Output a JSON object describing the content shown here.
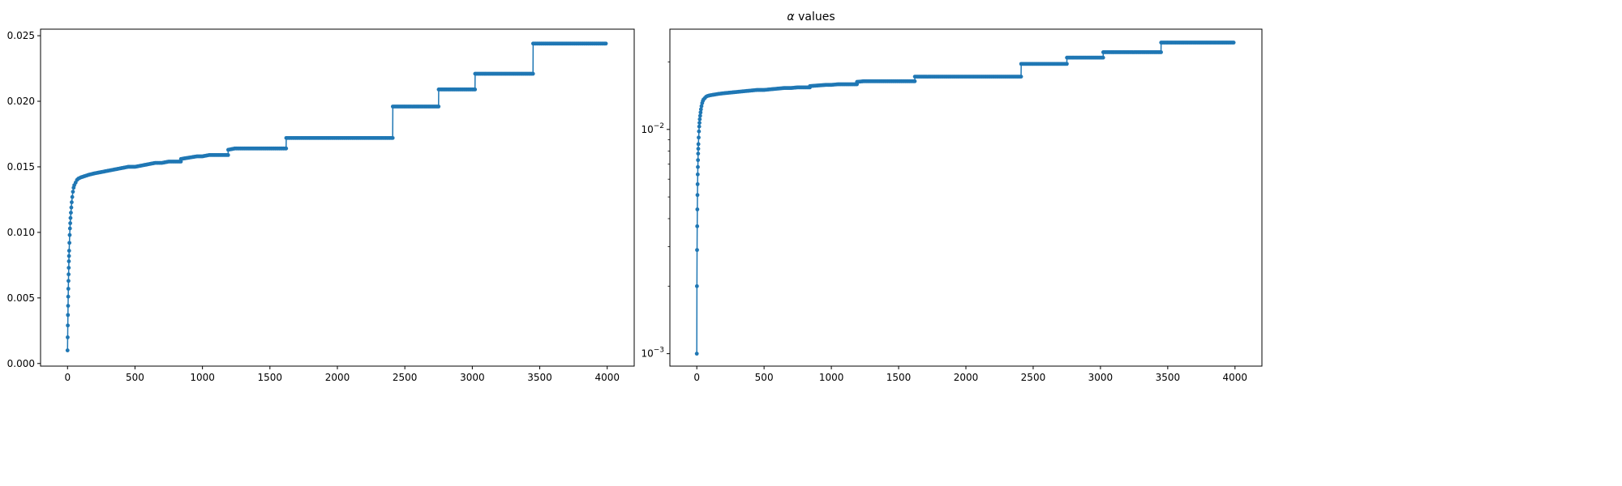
{
  "figure": {
    "title_prefix": "α",
    "title_suffix": " values"
  },
  "colors": {
    "series": "#1f77b4",
    "axes": "#000000",
    "background": "#ffffff"
  },
  "chart_data": [
    {
      "type": "line",
      "marker": "dot",
      "yscale": "linear",
      "xlim": [
        -200,
        4200
      ],
      "ylim": [
        -0.0002,
        0.0255
      ],
      "xticks": [
        0,
        500,
        1000,
        1500,
        2000,
        2500,
        3000,
        3500,
        4000
      ],
      "xtick_labels": [
        "0",
        "500",
        "1000",
        "1500",
        "2000",
        "2500",
        "3000",
        "3500",
        "4000"
      ],
      "yticks": [
        0.0,
        0.005,
        0.01,
        0.015,
        0.02,
        0.025
      ],
      "ytick_labels": [
        "0.000",
        "0.005",
        "0.010",
        "0.015",
        "0.020",
        "0.025"
      ],
      "series": [
        {
          "x": [
            0,
            1,
            2,
            3,
            4,
            5,
            6,
            7,
            8,
            9,
            10,
            11,
            12,
            14,
            16,
            18,
            20,
            22,
            25,
            28,
            31,
            35,
            40,
            45,
            50,
            60,
            70,
            80,
            100,
            130,
            160,
            200,
            250,
            300,
            350,
            400,
            450,
            500,
            550,
            600,
            650,
            700,
            750,
            800,
            840,
            841,
            900,
            960,
            1000,
            1050,
            1100,
            1150,
            1190,
            1191,
            1240,
            1300,
            1400,
            1500,
            1600,
            1620,
            1621,
            1700,
            1800,
            1900,
            2000,
            2100,
            2200,
            2300,
            2410,
            2411,
            2500,
            2600,
            2700,
            2750,
            2751,
            2800,
            2900,
            3000,
            3020,
            3021,
            3100,
            3200,
            3300,
            3400,
            3450,
            3451,
            3500,
            3600,
            3700,
            3800,
            3900,
            3990
          ],
          "y": [
            0.001,
            0.002,
            0.0029,
            0.0037,
            0.0044,
            0.0051,
            0.0057,
            0.0063,
            0.0068,
            0.0073,
            0.0078,
            0.0082,
            0.0086,
            0.0092,
            0.0098,
            0.0103,
            0.0107,
            0.0111,
            0.0115,
            0.0119,
            0.0123,
            0.0127,
            0.0131,
            0.0134,
            0.0136,
            0.0138,
            0.014,
            0.0141,
            0.0142,
            0.0143,
            0.0144,
            0.0145,
            0.0146,
            0.0147,
            0.0148,
            0.0149,
            0.015,
            0.015,
            0.0151,
            0.0152,
            0.0153,
            0.0153,
            0.0154,
            0.0154,
            0.0154,
            0.0156,
            0.0157,
            0.0158,
            0.0158,
            0.0159,
            0.0159,
            0.0159,
            0.0159,
            0.0163,
            0.0164,
            0.0164,
            0.0164,
            0.0164,
            0.0164,
            0.0164,
            0.0172,
            0.0172,
            0.0172,
            0.0172,
            0.0172,
            0.0172,
            0.0172,
            0.0172,
            0.0172,
            0.0196,
            0.0196,
            0.0196,
            0.0196,
            0.0196,
            0.0209,
            0.0209,
            0.0209,
            0.0209,
            0.0209,
            0.0221,
            0.0221,
            0.0221,
            0.0221,
            0.0221,
            0.0221,
            0.0244,
            0.0244,
            0.0244,
            0.0244,
            0.0244,
            0.0244,
            0.0244
          ]
        }
      ]
    },
    {
      "type": "line",
      "marker": "dot",
      "yscale": "log",
      "xlim": [
        -200,
        4200
      ],
      "ylim": [
        0.00088,
        0.028
      ],
      "xticks": [
        0,
        500,
        1000,
        1500,
        2000,
        2500,
        3000,
        3500,
        4000
      ],
      "xtick_labels": [
        "0",
        "500",
        "1000",
        "1500",
        "2000",
        "2500",
        "3000",
        "3500",
        "4000"
      ],
      "yticks_major": [
        0.001,
        0.01
      ],
      "ytick_labels_major": [
        {
          "base": "10",
          "exp": "−3"
        },
        {
          "base": "10",
          "exp": "−2"
        }
      ],
      "yticks_minor": [
        0.002,
        0.003,
        0.004,
        0.005,
        0.006,
        0.007,
        0.008,
        0.009,
        0.02
      ],
      "series": [
        {
          "x": [
            0,
            1,
            2,
            3,
            4,
            5,
            6,
            7,
            8,
            9,
            10,
            11,
            12,
            14,
            16,
            18,
            20,
            22,
            25,
            28,
            31,
            35,
            40,
            45,
            50,
            60,
            70,
            80,
            100,
            130,
            160,
            200,
            250,
            300,
            350,
            400,
            450,
            500,
            550,
            600,
            650,
            700,
            750,
            800,
            840,
            841,
            900,
            960,
            1000,
            1050,
            1100,
            1150,
            1190,
            1191,
            1240,
            1300,
            1400,
            1500,
            1600,
            1620,
            1621,
            1700,
            1800,
            1900,
            2000,
            2100,
            2200,
            2300,
            2410,
            2411,
            2500,
            2600,
            2700,
            2750,
            2751,
            2800,
            2900,
            3000,
            3020,
            3021,
            3100,
            3200,
            3300,
            3400,
            3450,
            3451,
            3500,
            3600,
            3700,
            3800,
            3900,
            3990
          ],
          "y": [
            0.001,
            0.002,
            0.0029,
            0.0037,
            0.0044,
            0.0051,
            0.0057,
            0.0063,
            0.0068,
            0.0073,
            0.0078,
            0.0082,
            0.0086,
            0.0092,
            0.0098,
            0.0103,
            0.0107,
            0.0111,
            0.0115,
            0.0119,
            0.0123,
            0.0127,
            0.0131,
            0.0134,
            0.0136,
            0.0138,
            0.014,
            0.0141,
            0.0142,
            0.0143,
            0.0144,
            0.0145,
            0.0146,
            0.0147,
            0.0148,
            0.0149,
            0.015,
            0.015,
            0.0151,
            0.0152,
            0.0153,
            0.0153,
            0.0154,
            0.0154,
            0.0154,
            0.0156,
            0.0157,
            0.0158,
            0.0158,
            0.0159,
            0.0159,
            0.0159,
            0.0159,
            0.0163,
            0.0164,
            0.0164,
            0.0164,
            0.0164,
            0.0164,
            0.0164,
            0.0172,
            0.0172,
            0.0172,
            0.0172,
            0.0172,
            0.0172,
            0.0172,
            0.0172,
            0.0172,
            0.0196,
            0.0196,
            0.0196,
            0.0196,
            0.0196,
            0.0209,
            0.0209,
            0.0209,
            0.0209,
            0.0209,
            0.0221,
            0.0221,
            0.0221,
            0.0221,
            0.0221,
            0.0221,
            0.0244,
            0.0244,
            0.0244,
            0.0244,
            0.0244,
            0.0244,
            0.0244
          ]
        }
      ]
    }
  ]
}
